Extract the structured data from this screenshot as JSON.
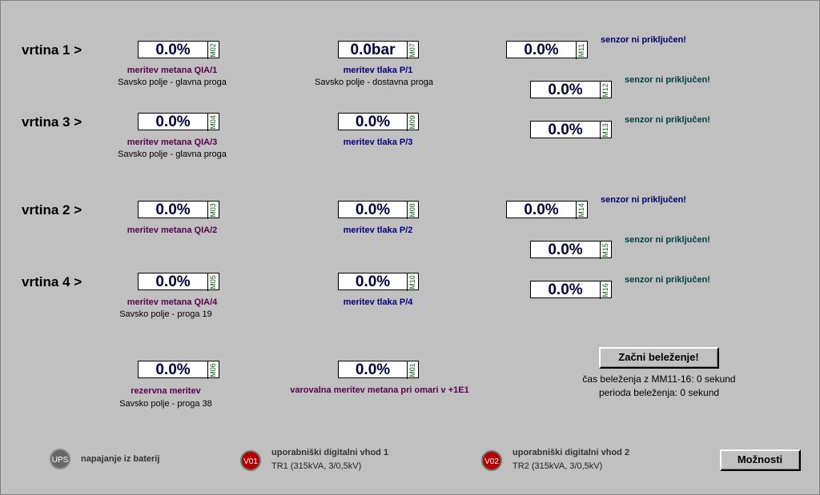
{
  "holes": {
    "h1": "vrtina 1 >",
    "h3": "vrtina 3 >",
    "h2": "vrtina 2 >",
    "h4": "vrtina 4 >"
  },
  "fields": {
    "M02": {
      "value": "0.0%",
      "tag": "M02",
      "label": "meritev metana QIA/1",
      "sub": "Savsko polje - glavna proga"
    },
    "M07": {
      "value": "0.0bar",
      "tag": "M07",
      "label": "meritev tlaka P/1",
      "sub": "Savsko polje - dostavna proga"
    },
    "M11": {
      "value": "0.0%",
      "tag": "M11",
      "status": "senzor ni priključen!"
    },
    "M12": {
      "value": "0.0%",
      "tag": "M12",
      "status": "senzor ni priključen!"
    },
    "M04": {
      "value": "0.0%",
      "tag": "M04",
      "label": "meritev metana QIA/3",
      "sub": "Savsko polje - glavna proga"
    },
    "M09": {
      "value": "0.0%",
      "tag": "M09",
      "label": "meritev tlaka P/3"
    },
    "M13": {
      "value": "0.0%",
      "tag": "M13",
      "status": "senzor ni priključen!"
    },
    "M03": {
      "value": "0.0%",
      "tag": "M03",
      "label": "meritev metana QIA/2"
    },
    "M08": {
      "value": "0.0%",
      "tag": "M08",
      "label": "meritev tlaka P/2"
    },
    "M14": {
      "value": "0.0%",
      "tag": "M14",
      "status": "senzor ni priključen!"
    },
    "M15": {
      "value": "0.0%",
      "tag": "M15",
      "status": "senzor ni priključen!"
    },
    "M05": {
      "value": "0.0%",
      "tag": "M05",
      "label": "meritev metana QIA/4",
      "sub": "Savsko polje - proga 19"
    },
    "M10": {
      "value": "0.0%",
      "tag": "M10",
      "label": "meritev tlaka P/4"
    },
    "M16": {
      "value": "0.0%",
      "tag": "M16",
      "status": "senzor ni priključen!"
    },
    "M06": {
      "value": "0.0%",
      "tag": "M06",
      "label": "rezervna meritev",
      "sub": "Savsko polje - proga 38"
    },
    "M01": {
      "value": "0.0%",
      "tag": "M01",
      "label": "varovalna meritev metana pri omari v +1E1"
    }
  },
  "logging": {
    "start_button": "Začni beleženje!",
    "time_text": "čas beleženja z MM11-16: 0 sekund",
    "period_text": "perioda beleženja: 0 sekund"
  },
  "indicators": {
    "ups": {
      "code": "UPS",
      "label": "napajanje iz baterij",
      "color": "#666666"
    },
    "v01": {
      "code": "V01",
      "label": "uporabniški digitalni vhod 1",
      "sub": "TR1 (315kVA, 3/0,5kV)",
      "color": "#b00000"
    },
    "v02": {
      "code": "V02",
      "label": "uporabniški digitalni vhod 2",
      "sub": "TR2 (315kVA, 3/0,5kV)",
      "color": "#b00000"
    }
  },
  "options_button": "Možnosti",
  "colors": {
    "background": "#c0c0c0",
    "value_text": "#00003c",
    "methane_label": "#5a0050",
    "pressure_label": "#000080",
    "status_label": "#004040",
    "tag_text": "#006400"
  }
}
